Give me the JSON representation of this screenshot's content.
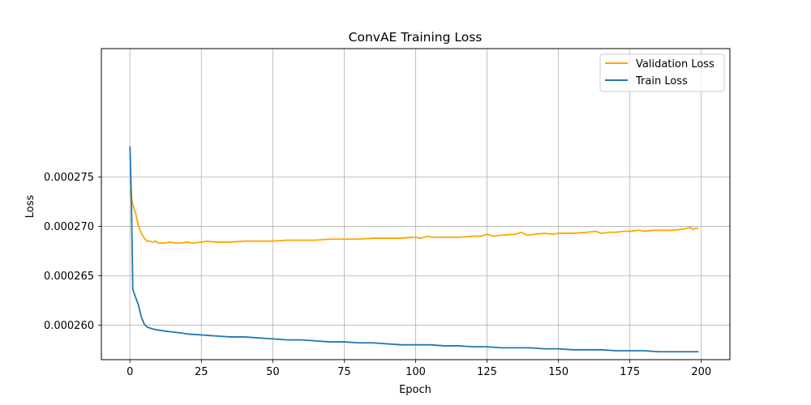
{
  "chart_data": {
    "type": "line",
    "title": "ConvAE Training Loss",
    "xlabel": "Epoch",
    "ylabel": "Loss",
    "xlim": [
      -10,
      210
    ],
    "ylim": [
      0.0002565,
      0.000288
    ],
    "xticks": [
      0,
      25,
      50,
      75,
      100,
      125,
      150,
      175,
      200
    ],
    "xtick_labels": [
      "0",
      "25",
      "50",
      "75",
      "100",
      "125",
      "150",
      "175",
      "200"
    ],
    "yticks": [
      0.00026,
      0.000265,
      0.00027,
      0.000275
    ],
    "ytick_labels": [
      "0.000260",
      "0.000265",
      "0.000270",
      "0.000275"
    ],
    "grid": true,
    "legend_position": "top-right",
    "series": [
      {
        "name": "Validation Loss",
        "color": "#ffa500",
        "points": [
          [
            0,
            0.0002737
          ],
          [
            1,
            0.0002722
          ],
          [
            2,
            0.0002713
          ],
          [
            3,
            0.00027
          ],
          [
            4,
            0.0002693
          ],
          [
            5,
            0.0002688
          ],
          [
            6,
            0.0002685
          ],
          [
            7,
            0.0002685
          ],
          [
            8,
            0.0002684
          ],
          [
            9,
            0.0002685
          ],
          [
            10,
            0.0002683
          ],
          [
            12,
            0.0002683
          ],
          [
            14,
            0.0002684
          ],
          [
            16,
            0.0002683
          ],
          [
            18,
            0.0002683
          ],
          [
            20,
            0.0002684
          ],
          [
            22,
            0.0002683
          ],
          [
            25,
            0.0002684
          ],
          [
            27,
            0.0002685
          ],
          [
            30,
            0.0002684
          ],
          [
            35,
            0.0002684
          ],
          [
            40,
            0.0002685
          ],
          [
            45,
            0.0002685
          ],
          [
            50,
            0.0002685
          ],
          [
            55,
            0.0002686
          ],
          [
            60,
            0.0002686
          ],
          [
            65,
            0.0002686
          ],
          [
            70,
            0.0002687
          ],
          [
            75,
            0.0002687
          ],
          [
            80,
            0.0002687
          ],
          [
            85,
            0.0002688
          ],
          [
            90,
            0.0002688
          ],
          [
            95,
            0.0002688
          ],
          [
            100,
            0.0002689
          ],
          [
            102,
            0.0002688
          ],
          [
            104,
            0.000269
          ],
          [
            106,
            0.0002689
          ],
          [
            110,
            0.0002689
          ],
          [
            115,
            0.0002689
          ],
          [
            120,
            0.000269
          ],
          [
            123,
            0.000269
          ],
          [
            125,
            0.0002692
          ],
          [
            127,
            0.000269
          ],
          [
            130,
            0.0002691
          ],
          [
            135,
            0.0002692
          ],
          [
            137,
            0.0002694
          ],
          [
            139,
            0.0002691
          ],
          [
            142,
            0.0002692
          ],
          [
            145,
            0.0002693
          ],
          [
            148,
            0.0002692
          ],
          [
            150,
            0.0002693
          ],
          [
            155,
            0.0002693
          ],
          [
            160,
            0.0002694
          ],
          [
            163,
            0.0002695
          ],
          [
            165,
            0.0002693
          ],
          [
            168,
            0.0002694
          ],
          [
            170,
            0.0002694
          ],
          [
            173,
            0.0002695
          ],
          [
            175,
            0.0002695
          ],
          [
            178,
            0.0002696
          ],
          [
            180,
            0.0002695
          ],
          [
            183,
            0.0002696
          ],
          [
            185,
            0.0002696
          ],
          [
            188,
            0.0002696
          ],
          [
            190,
            0.0002696
          ],
          [
            193,
            0.0002697
          ],
          [
            195,
            0.0002698
          ],
          [
            196,
            0.0002699
          ],
          [
            197,
            0.0002697
          ],
          [
            198,
            0.0002698
          ],
          [
            199,
            0.0002698
          ]
        ]
      },
      {
        "name": "Train Loss",
        "color": "#1f77b4",
        "points": [
          [
            0,
            0.0002781
          ],
          [
            0.5,
            0.000273
          ],
          [
            1,
            0.0002636
          ],
          [
            2,
            0.0002628
          ],
          [
            3,
            0.000262
          ],
          [
            4,
            0.0002608
          ],
          [
            5,
            0.0002601
          ],
          [
            6,
            0.0002598
          ],
          [
            7,
            0.0002597
          ],
          [
            8,
            0.0002596
          ],
          [
            10,
            0.0002595
          ],
          [
            12,
            0.0002594
          ],
          [
            15,
            0.0002593
          ],
          [
            18,
            0.0002592
          ],
          [
            20,
            0.0002591
          ],
          [
            25,
            0.000259
          ],
          [
            30,
            0.0002589
          ],
          [
            35,
            0.0002588
          ],
          [
            40,
            0.0002588
          ],
          [
            45,
            0.0002587
          ],
          [
            50,
            0.0002586
          ],
          [
            55,
            0.0002585
          ],
          [
            60,
            0.0002585
          ],
          [
            65,
            0.0002584
          ],
          [
            70,
            0.0002583
          ],
          [
            75,
            0.0002583
          ],
          [
            80,
            0.0002582
          ],
          [
            85,
            0.0002582
          ],
          [
            90,
            0.0002581
          ],
          [
            95,
            0.000258
          ],
          [
            100,
            0.000258
          ],
          [
            105,
            0.000258
          ],
          [
            110,
            0.0002579
          ],
          [
            115,
            0.0002579
          ],
          [
            120,
            0.0002578
          ],
          [
            125,
            0.0002578
          ],
          [
            130,
            0.0002577
          ],
          [
            135,
            0.0002577
          ],
          [
            140,
            0.0002577
          ],
          [
            145,
            0.0002576
          ],
          [
            150,
            0.0002576
          ],
          [
            155,
            0.0002575
          ],
          [
            160,
            0.0002575
          ],
          [
            165,
            0.0002575
          ],
          [
            170,
            0.0002574
          ],
          [
            175,
            0.0002574
          ],
          [
            180,
            0.0002574
          ],
          [
            185,
            0.0002573
          ],
          [
            190,
            0.0002573
          ],
          [
            195,
            0.0002573
          ],
          [
            199,
            0.0002573
          ]
        ]
      }
    ]
  }
}
